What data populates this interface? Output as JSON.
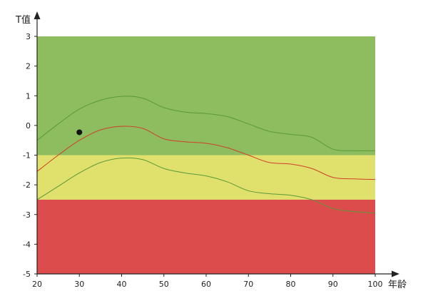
{
  "chart_data": {
    "type": "line",
    "xlabel": "年龄",
    "ylabel": "T值",
    "xlim": [
      20,
      100
    ],
    "ylim": [
      -5,
      3
    ],
    "xticks": [
      20,
      30,
      40,
      50,
      60,
      70,
      80,
      90,
      100
    ],
    "yticks": [
      3,
      2,
      1,
      0,
      -1,
      -2,
      -3,
      -4,
      -5
    ],
    "bands": [
      {
        "from": -1,
        "to": 3,
        "color": "#8dbd5e"
      },
      {
        "from": -2.5,
        "to": -1,
        "color": "#e0e06c"
      },
      {
        "from": -5,
        "to": -2.5,
        "color": "#dc4c4c"
      }
    ],
    "series": [
      {
        "color": "#5a9a3a",
        "x": [
          20,
          25,
          30,
          35,
          40,
          45,
          50,
          55,
          60,
          65,
          70,
          75,
          80,
          85,
          90,
          95,
          100
        ],
        "y": [
          -0.5,
          0.05,
          0.55,
          0.85,
          0.98,
          0.92,
          0.6,
          0.45,
          0.4,
          0.3,
          0.05,
          -0.2,
          -0.3,
          -0.4,
          -0.8,
          -0.85,
          -0.85
        ]
      },
      {
        "color": "#d0402a",
        "x": [
          20,
          25,
          30,
          35,
          40,
          45,
          50,
          55,
          60,
          65,
          70,
          75,
          80,
          85,
          90,
          95,
          100
        ],
        "y": [
          -1.55,
          -1.0,
          -0.5,
          -0.15,
          -0.03,
          -0.1,
          -0.45,
          -0.55,
          -0.6,
          -0.75,
          -1.0,
          -1.25,
          -1.3,
          -1.45,
          -1.75,
          -1.8,
          -1.82
        ]
      },
      {
        "color": "#5a9a3a",
        "x": [
          20,
          25,
          30,
          35,
          40,
          45,
          50,
          55,
          60,
          65,
          70,
          75,
          80,
          85,
          90,
          95,
          100
        ],
        "y": [
          -2.5,
          -2.05,
          -1.6,
          -1.25,
          -1.1,
          -1.15,
          -1.45,
          -1.6,
          -1.7,
          -1.9,
          -2.2,
          -2.3,
          -2.35,
          -2.5,
          -2.8,
          -2.9,
          -2.95
        ]
      }
    ],
    "points": [
      {
        "x": 30,
        "y": -0.23,
        "color": "#111111"
      }
    ]
  }
}
